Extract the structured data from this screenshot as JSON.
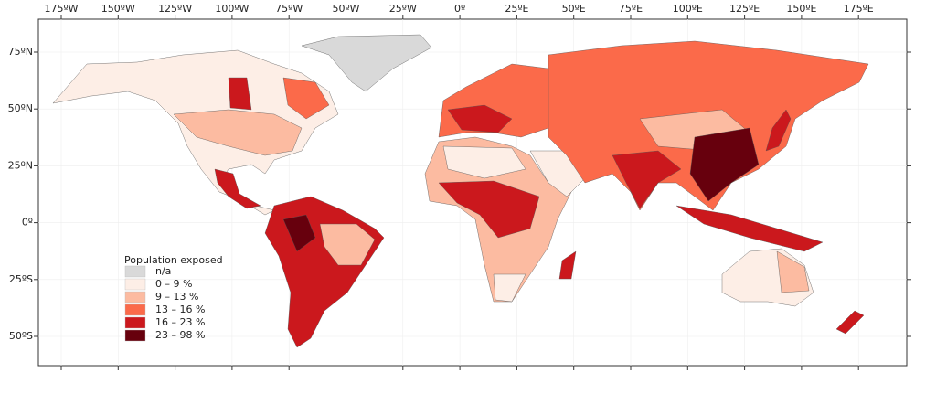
{
  "map": {
    "longitude_labels": [
      "175ºW",
      "150ºW",
      "125ºW",
      "100ºW",
      "75ºW",
      "50ºW",
      "25ºW",
      "0º",
      "25ºE",
      "50ºE",
      "75ºE",
      "100ºE",
      "125ºE",
      "150ºE",
      "175ºE"
    ],
    "latitude_labels": [
      "75ºN",
      "50ºN",
      "25ºN",
      "0º",
      "25ºS",
      "50ºS"
    ],
    "legend": {
      "title": "Population exposed",
      "items": [
        {
          "label": "n/a",
          "color": "#d9d9d9"
        },
        {
          "label": "0 – 9 %",
          "color": "#fdeee6"
        },
        {
          "label": "9 – 13 %",
          "color": "#fcbba1"
        },
        {
          "label": "13 – 16 %",
          "color": "#fb6a4a"
        },
        {
          "label": "16 – 23 %",
          "color": "#cb181d"
        },
        {
          "label": "23 – 98 %",
          "color": "#67000d"
        }
      ]
    }
  }
}
